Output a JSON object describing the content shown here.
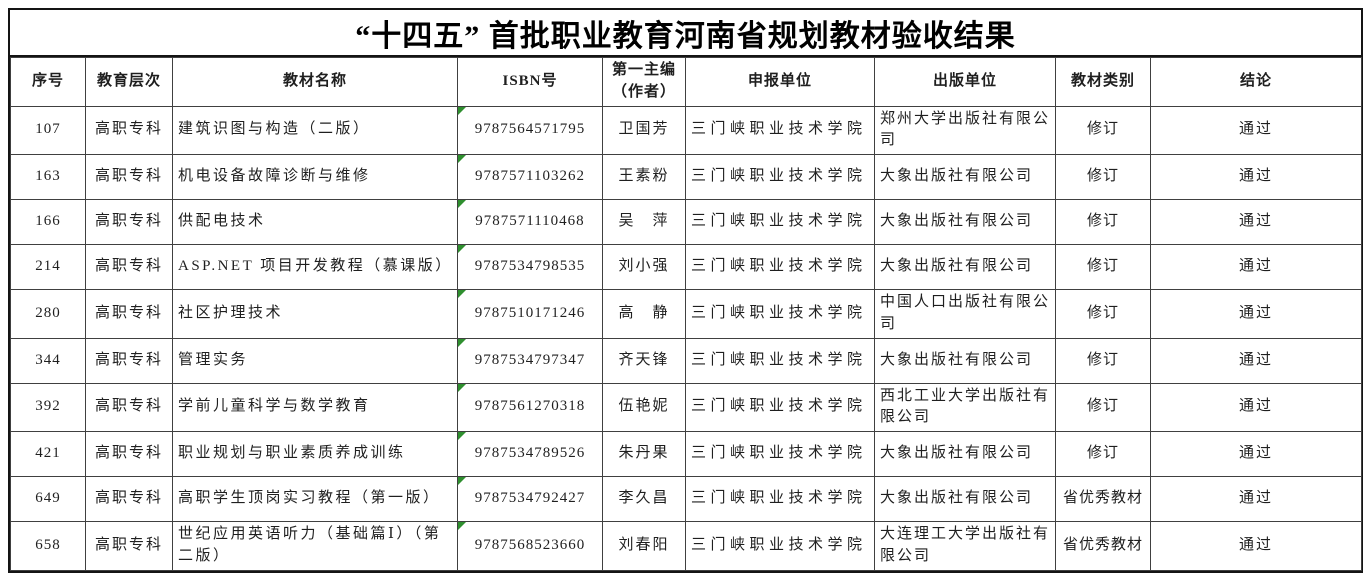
{
  "page": {
    "title": "“十四五” 首批职业教育河南省规划教材验收结果"
  },
  "colors": {
    "outer_border": "#141414",
    "grid_line": "#404040",
    "text": "#1f1f1f",
    "indicator_green": "#2f8f2f"
  },
  "icons": {
    "isbn_cell_marker": "green-triangle-icon"
  },
  "table": {
    "columns": [
      "序号",
      "教育层次",
      "教材名称",
      "ISBN号",
      "第一主编（作者）",
      "申报单位",
      "出版单位",
      "教材类别",
      "结论"
    ],
    "column_keys": [
      "no",
      "level",
      "name",
      "isbn",
      "editor",
      "applicant",
      "publisher",
      "category",
      "conclusion"
    ],
    "rows": [
      [
        "107",
        "高职专科",
        "建筑识图与构造（二版）",
        "9787564571795",
        "卫国芳",
        "三门峡职业技术学院",
        "郑州大学出版社有限公司",
        "修订",
        "通过"
      ],
      [
        "163",
        "高职专科",
        "机电设备故障诊断与维修",
        "9787571103262",
        "王素粉",
        "三门峡职业技术学院",
        "大象出版社有限公司",
        "修订",
        "通过"
      ],
      [
        "166",
        "高职专科",
        "供配电技术",
        "9787571110468",
        "吴　萍",
        "三门峡职业技术学院",
        "大象出版社有限公司",
        "修订",
        "通过"
      ],
      [
        "214",
        "高职专科",
        "ASP.NET 项目开发教程（慕课版）",
        "9787534798535",
        "刘小强",
        "三门峡职业技术学院",
        "大象出版社有限公司",
        "修订",
        "通过"
      ],
      [
        "280",
        "高职专科",
        "社区护理技术",
        "9787510171246",
        "高　静",
        "三门峡职业技术学院",
        "中国人口出版社有限公司",
        "修订",
        "通过"
      ],
      [
        "344",
        "高职专科",
        "管理实务",
        "9787534797347",
        "齐天锋",
        "三门峡职业技术学院",
        "大象出版社有限公司",
        "修订",
        "通过"
      ],
      [
        "392",
        "高职专科",
        "学前儿童科学与数学教育",
        "9787561270318",
        "伍艳妮",
        "三门峡职业技术学院",
        "西北工业大学出版社有限公司",
        "修订",
        "通过"
      ],
      [
        "421",
        "高职专科",
        "职业规划与职业素质养成训练",
        "9787534789526",
        "朱丹果",
        "三门峡职业技术学院",
        "大象出版社有限公司",
        "修订",
        "通过"
      ],
      [
        "649",
        "高职专科",
        "高职学生顶岗实习教程（第一版）",
        "9787534792427",
        "李久昌",
        "三门峡职业技术学院",
        "大象出版社有限公司",
        "省优秀教材",
        "通过"
      ],
      [
        "658",
        "高职专科",
        "世纪应用英语听力（基础篇Ⅰ）（第二版）",
        "9787568523660",
        "刘春阳",
        "三门峡职业技术学院",
        "大连理工大学出版社有限公司",
        "省优秀教材",
        "通过"
      ]
    ]
  }
}
